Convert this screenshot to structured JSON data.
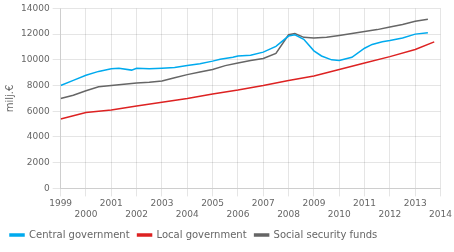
{
  "chart_data": {
    "type": "line",
    "y_label": "milj.€",
    "xlim": [
      1999,
      2014
    ],
    "ylim": [
      0,
      14000
    ],
    "xticks": [
      1999,
      2000,
      2001,
      2002,
      2003,
      2004,
      2005,
      2006,
      2007,
      2008,
      2009,
      2010,
      2011,
      2012,
      2013,
      2014
    ],
    "yticks": [
      0,
      2000,
      4000,
      6000,
      8000,
      10000,
      12000,
      14000
    ],
    "grid": true,
    "legend": "lower left",
    "series": [
      {
        "name": "Central government",
        "color": "#00aaee",
        "x": [
          1999,
          1999.5,
          2000,
          2000.5,
          2001,
          2001.3,
          2001.8,
          2002,
          2002.5,
          2003,
          2003.5,
          2004,
          2004.5,
          2005,
          2005.3,
          2005.8,
          2006,
          2006.5,
          2007,
          2007.5,
          2008,
          2008.25,
          2008.6,
          2009,
          2009.3,
          2009.7,
          2010,
          2010.5,
          2011,
          2011.3,
          2011.7,
          2012,
          2012.5,
          2013,
          2013.5
        ],
        "values": [
          8000,
          8400,
          8800,
          9100,
          9300,
          9350,
          9200,
          9350,
          9300,
          9350,
          9400,
          9550,
          9700,
          9900,
          10050,
          10200,
          10300,
          10350,
          10600,
          11050,
          11850,
          11950,
          11600,
          10700,
          10300,
          10000,
          9950,
          10200,
          10900,
          11200,
          11400,
          11500,
          11700,
          12000,
          12100
        ]
      },
      {
        "name": "Local government",
        "color": "#dd2222",
        "x": [
          1999,
          2000,
          2001,
          2002,
          2003,
          2004,
          2005,
          2006,
          2007,
          2008,
          2009,
          2010,
          2011,
          2012,
          2013,
          2013.75
        ],
        "values": [
          5400,
          5900,
          6100,
          6400,
          6700,
          7000,
          7350,
          7650,
          8000,
          8400,
          8750,
          9250,
          9750,
          10250,
          10800,
          11400
        ]
      },
      {
        "name": "Social security funds",
        "color": "#666666",
        "x": [
          1999,
          1999.5,
          2000,
          2000.5,
          2001,
          2001.5,
          2002,
          2002.5,
          2003,
          2003.5,
          2004,
          2004.5,
          2005,
          2005.5,
          2006,
          2006.5,
          2007,
          2007.5,
          2008,
          2008.25,
          2008.6,
          2009,
          2009.5,
          2010,
          2010.5,
          2011,
          2011.5,
          2012,
          2012.5,
          2013,
          2013.5
        ],
        "values": [
          7000,
          7250,
          7600,
          7900,
          8000,
          8100,
          8200,
          8250,
          8350,
          8600,
          8850,
          9050,
          9250,
          9550,
          9750,
          9950,
          10100,
          10500,
          11950,
          12050,
          11750,
          11700,
          11750,
          11900,
          12050,
          12200,
          12350,
          12550,
          12750,
          13000,
          13150
        ]
      }
    ]
  }
}
